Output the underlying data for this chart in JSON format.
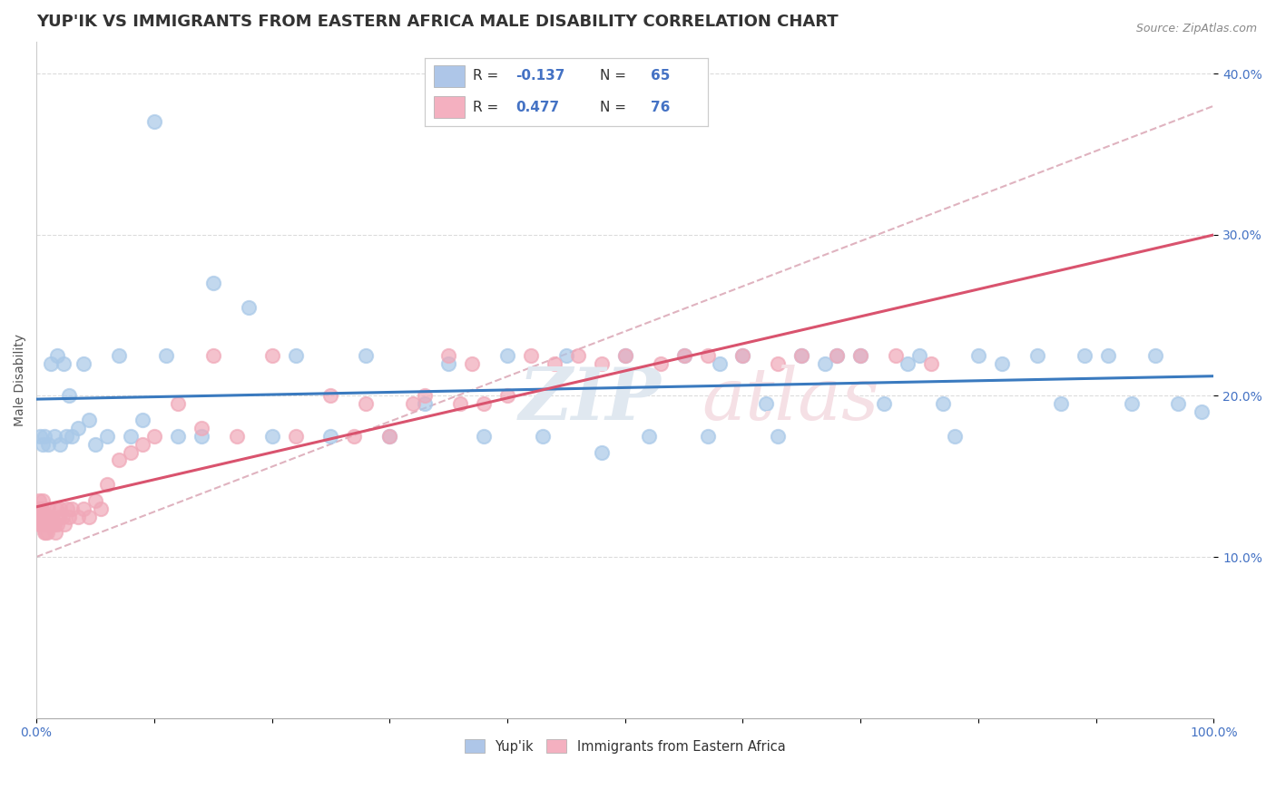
{
  "title": "YUP'IK VS IMMIGRANTS FROM EASTERN AFRICA MALE DISABILITY CORRELATION CHART",
  "source": "Source: ZipAtlas.com",
  "ylabel": "Male Disability",
  "legend_R1": "-0.137",
  "legend_N1": "65",
  "legend_R2": "0.477",
  "legend_N2": "76",
  "blue_scatter_color": "#a8c8e8",
  "pink_scatter_color": "#f0a8b8",
  "blue_line_color": "#3a7abf",
  "pink_line_color": "#d9536e",
  "pink_dash_color": "#d8a0b0",
  "legend_blue_box": "#aec6e8",
  "legend_pink_box": "#f4b0c0",
  "watermark_color": "#e0e8f0",
  "watermark_pink": "#f5e0e5",
  "background_color": "#ffffff",
  "grid_color": "#d8d8d8",
  "blue_x": [
    0.3,
    0.5,
    0.7,
    1.0,
    1.2,
    1.5,
    1.8,
    2.0,
    2.3,
    2.5,
    2.8,
    3.0,
    3.5,
    4.0,
    4.5,
    5.0,
    6.0,
    7.0,
    8.0,
    9.0,
    10.0,
    11.0,
    12.0,
    14.0,
    15.0,
    18.0,
    20.0,
    22.0,
    25.0,
    28.0,
    30.0,
    33.0,
    35.0,
    38.0,
    40.0,
    43.0,
    45.0,
    48.0,
    50.0,
    52.0,
    55.0,
    57.0,
    58.0,
    60.0,
    62.0,
    63.0,
    65.0,
    67.0,
    68.0,
    70.0,
    72.0,
    74.0,
    75.0,
    77.0,
    78.0,
    80.0,
    82.0,
    85.0,
    87.0,
    89.0,
    91.0,
    93.0,
    95.0,
    97.0,
    99.0
  ],
  "blue_y": [
    17.5,
    17.0,
    17.5,
    17.0,
    22.0,
    17.5,
    22.5,
    17.0,
    22.0,
    17.5,
    20.0,
    17.5,
    18.0,
    22.0,
    18.5,
    17.0,
    17.5,
    22.5,
    17.5,
    18.5,
    37.0,
    22.5,
    17.5,
    17.5,
    27.0,
    25.5,
    17.5,
    22.5,
    17.5,
    22.5,
    17.5,
    19.5,
    22.0,
    17.5,
    22.5,
    17.5,
    22.5,
    16.5,
    22.5,
    17.5,
    22.5,
    17.5,
    22.0,
    22.5,
    19.5,
    17.5,
    22.5,
    22.0,
    22.5,
    22.5,
    19.5,
    22.0,
    22.5,
    19.5,
    17.5,
    22.5,
    22.0,
    22.5,
    19.5,
    22.5,
    22.5,
    19.5,
    22.5,
    19.5,
    19.0
  ],
  "pink_x": [
    0.1,
    0.15,
    0.2,
    0.25,
    0.3,
    0.35,
    0.4,
    0.45,
    0.5,
    0.55,
    0.6,
    0.65,
    0.7,
    0.75,
    0.8,
    0.85,
    0.9,
    0.95,
    1.0,
    1.1,
    1.2,
    1.3,
    1.4,
    1.5,
    1.6,
    1.7,
    1.8,
    1.9,
    2.0,
    2.2,
    2.4,
    2.6,
    2.8,
    3.0,
    3.5,
    4.0,
    4.5,
    5.0,
    5.5,
    6.0,
    7.0,
    8.0,
    9.0,
    10.0,
    12.0,
    14.0,
    15.0,
    17.0,
    20.0,
    22.0,
    25.0,
    27.0,
    28.0,
    30.0,
    32.0,
    33.0,
    35.0,
    36.0,
    37.0,
    38.0,
    40.0,
    42.0,
    44.0,
    46.0,
    48.0,
    50.0,
    53.0,
    55.0,
    57.0,
    60.0,
    63.0,
    65.0,
    68.0,
    70.0,
    73.0,
    76.0
  ],
  "pink_y": [
    13.0,
    12.5,
    13.5,
    12.0,
    13.0,
    12.5,
    12.0,
    13.0,
    13.5,
    12.5,
    12.0,
    11.5,
    12.5,
    12.0,
    11.5,
    12.0,
    12.5,
    11.5,
    13.0,
    12.5,
    12.0,
    12.5,
    12.0,
    12.0,
    11.5,
    13.0,
    12.0,
    12.5,
    13.0,
    12.5,
    12.0,
    13.0,
    12.5,
    13.0,
    12.5,
    13.0,
    12.5,
    13.5,
    13.0,
    14.5,
    16.0,
    16.5,
    17.0,
    17.5,
    19.5,
    18.0,
    22.5,
    17.5,
    22.5,
    17.5,
    20.0,
    17.5,
    19.5,
    17.5,
    19.5,
    20.0,
    22.5,
    19.5,
    22.0,
    19.5,
    20.0,
    22.5,
    22.0,
    22.5,
    22.0,
    22.5,
    22.0,
    22.5,
    22.5,
    22.5,
    22.0,
    22.5,
    22.5,
    22.5,
    22.5,
    22.0
  ],
  "xlim": [
    0,
    100
  ],
  "ylim": [
    0,
    42
  ],
  "yticks": [
    10,
    20,
    30,
    40
  ],
  "ytick_labels": [
    "10.0%",
    "20.0%",
    "30.0%",
    "40.0%"
  ],
  "title_fontsize": 13,
  "axis_label_fontsize": 10,
  "tick_fontsize": 10
}
